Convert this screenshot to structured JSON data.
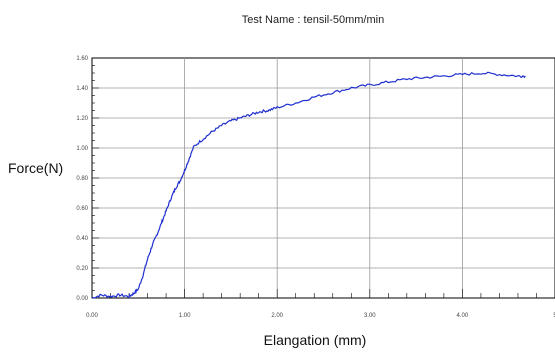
{
  "chart_data": {
    "type": "line",
    "title": "Test Name : tensil-50mm/min",
    "xlabel": "Elangation (mm)",
    "ylabel": "Force(N)",
    "xlim": [
      0,
      5
    ],
    "ylim": [
      0,
      1.6
    ],
    "x_ticks": [
      "0.00",
      "1.00",
      "2.00",
      "3.00",
      "4.00",
      "5"
    ],
    "y_ticks": [
      "0.00",
      "0.20",
      "0.40",
      "0.60",
      "0.80",
      "1.00",
      "1.20",
      "1.40",
      "1.60"
    ],
    "grid": true,
    "line_color": "#1f2fd0",
    "series": [
      {
        "x": [
          0.0,
          0.1,
          0.2,
          0.3,
          0.4,
          0.45,
          0.5,
          0.55,
          0.6,
          0.65,
          0.7,
          0.75,
          0.8,
          0.85,
          0.9,
          0.95,
          1.0,
          1.05,
          1.1,
          1.2,
          1.3,
          1.4,
          1.5,
          1.6,
          1.7,
          1.8,
          1.9,
          2.0,
          2.2,
          2.4,
          2.6,
          2.8,
          3.0,
          3.2,
          3.4,
          3.6,
          3.8,
          4.0,
          4.2,
          4.4,
          4.6,
          4.68
        ],
        "y": [
          0.0,
          0.02,
          0.01,
          0.02,
          0.01,
          0.03,
          0.06,
          0.15,
          0.26,
          0.35,
          0.42,
          0.5,
          0.58,
          0.66,
          0.73,
          0.78,
          0.85,
          0.93,
          1.01,
          1.06,
          1.11,
          1.15,
          1.18,
          1.2,
          1.22,
          1.24,
          1.25,
          1.27,
          1.3,
          1.34,
          1.37,
          1.4,
          1.42,
          1.44,
          1.46,
          1.47,
          1.48,
          1.49,
          1.5,
          1.49,
          1.48,
          1.48
        ]
      }
    ]
  }
}
